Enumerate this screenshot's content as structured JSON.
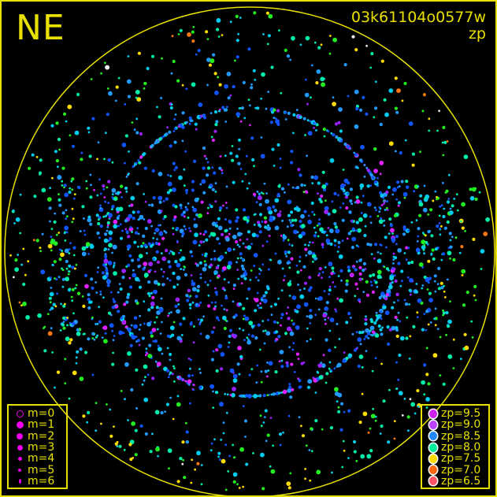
{
  "direction_label": "NE",
  "title": {
    "line1": "03k61104o0577w",
    "line2": "zp"
  },
  "colors": {
    "frame": "#e8e000",
    "background": "#000000"
  },
  "magnitude_legend": [
    {
      "label": "m=0",
      "open": true
    },
    {
      "label": "m=1"
    },
    {
      "label": "m=2"
    },
    {
      "label": "m=3"
    },
    {
      "label": "m=4"
    },
    {
      "label": "m=5"
    },
    {
      "label": "m=6"
    }
  ],
  "magnitude_legend_color": "#ee00ee",
  "zp_legend": [
    {
      "label": "zp=9.5",
      "color": "#cc22ee"
    },
    {
      "label": "zp=9.0",
      "color": "#bb44ff"
    },
    {
      "label": "zp=8.5",
      "color": "#2288ff"
    },
    {
      "label": "zp=8.0",
      "color": "#00ee99"
    },
    {
      "label": "zp=7.5",
      "color": "#ffdd00"
    },
    {
      "label": "zp=7.0",
      "color": "#ff6611"
    },
    {
      "label": "zp=6.5",
      "color": "#ff5566"
    }
  ]
}
